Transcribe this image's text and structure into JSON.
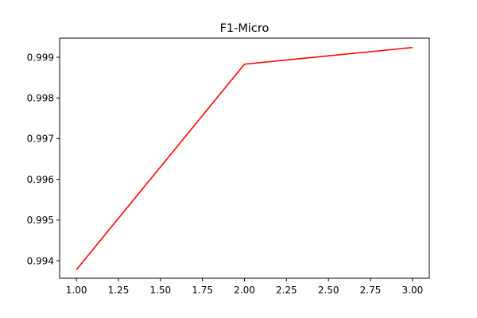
{
  "chart_data": {
    "type": "line",
    "title": "F1-Micro",
    "xlabel": "",
    "ylabel": "",
    "x": [
      1.0,
      2.0,
      3.0
    ],
    "series": [
      {
        "values": [
          0.99378,
          0.99883,
          0.99924
        ],
        "color": "#ff0000"
      }
    ],
    "xlim": [
      0.9,
      3.1
    ],
    "ylim": [
      0.99357,
      0.99947
    ],
    "x_ticks": [
      1.0,
      1.25,
      1.5,
      1.75,
      2.0,
      2.25,
      2.5,
      2.75,
      3.0
    ],
    "x_tick_labels": [
      "1.00",
      "1.25",
      "1.50",
      "1.75",
      "2.00",
      "2.25",
      "2.50",
      "2.75",
      "3.00"
    ],
    "y_ticks": [
      0.994,
      0.995,
      0.996,
      0.997,
      0.998,
      0.999
    ],
    "y_tick_labels": [
      "0.994",
      "0.995",
      "0.996",
      "0.997",
      "0.998",
      "0.999"
    ],
    "grid": false,
    "legend": "none"
  }
}
